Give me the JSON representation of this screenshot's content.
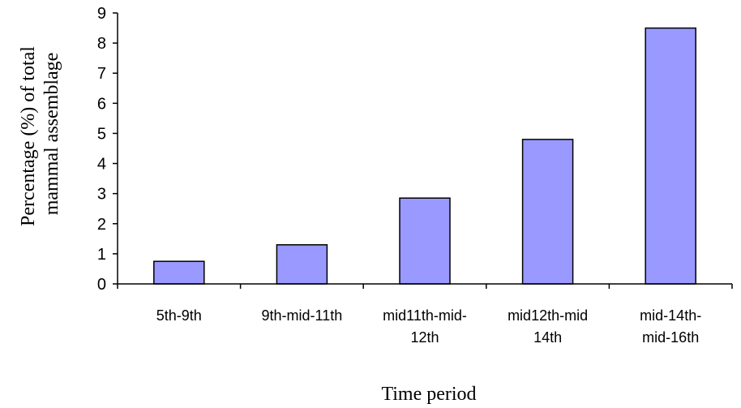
{
  "chart_data": {
    "type": "bar",
    "categories": [
      [
        "5th-9th"
      ],
      [
        "9th-mid-11th"
      ],
      [
        "mid11th-mid-",
        "12th"
      ],
      [
        "mid12th-mid",
        "14th"
      ],
      [
        "mid-14th-",
        "mid-16th"
      ]
    ],
    "values": [
      0.75,
      1.3,
      2.85,
      4.8,
      8.5
    ],
    "title": "",
    "xlabel": "Time period",
    "ylabel": [
      "Percentage (%) of total",
      "mammal assemblage"
    ],
    "ylim": [
      0,
      9
    ],
    "yticks": [
      "0",
      "1",
      "2",
      "3",
      "4",
      "5",
      "6",
      "7",
      "8",
      "9"
    ],
    "grid": false,
    "legend": "none",
    "colors": {
      "bar_fill": "#9999ff",
      "bar_stroke": "#000000",
      "axis": "#000000",
      "plot_background": "#ffffff"
    }
  }
}
